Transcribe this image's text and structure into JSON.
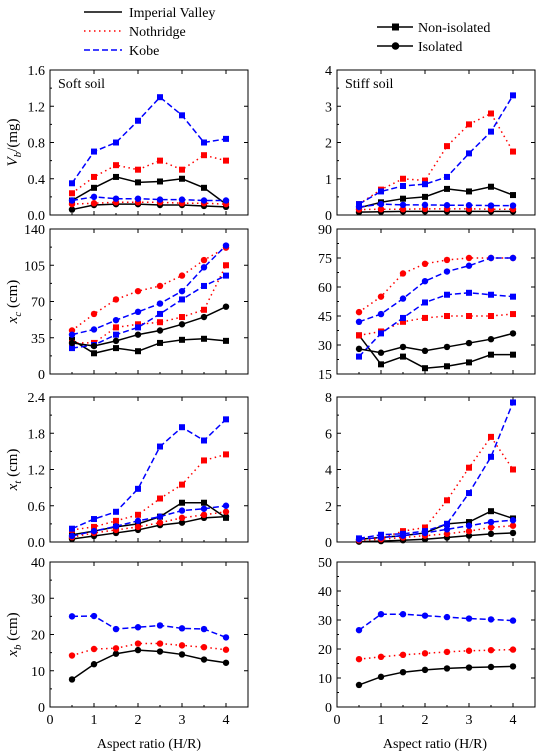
{
  "legend_left": [
    {
      "label": "Imperial Valley",
      "color": "#000000",
      "dash": "solid"
    },
    {
      "label": "Nothridge",
      "color": "#ff0000",
      "dash": "dotted"
    },
    {
      "label": "Kobe",
      "color": "#0000ff",
      "dash": "dashed"
    }
  ],
  "legend_right": [
    {
      "label": "Non-isolated",
      "marker": "square"
    },
    {
      "label": "Isolated",
      "marker": "circle"
    }
  ],
  "x_axis": {
    "label": "Aspect ratio (H/R)",
    "range": [
      0,
      4.5
    ],
    "ticks": [
      0,
      1,
      2,
      3,
      4
    ]
  },
  "colors": {
    "Imperial Valley": "#000000",
    "Nothridge": "#ff0000",
    "Kobe": "#0000ff"
  },
  "chart_data": [
    {
      "type": "line",
      "panel": "Vb-soft",
      "title": "Soft soil",
      "ylabel": "Vb/(mg)",
      "x": [
        0.5,
        1,
        1.5,
        2,
        2.5,
        3,
        3.5,
        4
      ],
      "ylim": [
        0,
        1.6
      ],
      "yticks": [
        "0.0",
        "0.4",
        "0.8",
        "1.2",
        "1.6"
      ],
      "series": [
        {
          "name": "Imperial Valley",
          "marker": "square",
          "values": [
            0.16,
            0.3,
            0.42,
            0.36,
            0.37,
            0.4,
            0.3,
            0.12
          ]
        },
        {
          "name": "Nothridge",
          "marker": "square",
          "values": [
            0.24,
            0.42,
            0.55,
            0.5,
            0.6,
            0.5,
            0.66,
            0.6
          ]
        },
        {
          "name": "Kobe",
          "marker": "square",
          "values": [
            0.35,
            0.7,
            0.8,
            1.04,
            1.3,
            1.1,
            0.8,
            0.84
          ]
        },
        {
          "name": "Imperial Valley",
          "marker": "circle",
          "values": [
            0.06,
            0.11,
            0.12,
            0.12,
            0.11,
            0.11,
            0.1,
            0.09
          ]
        },
        {
          "name": "Nothridge",
          "marker": "circle",
          "values": [
            0.12,
            0.13,
            0.14,
            0.14,
            0.14,
            0.13,
            0.13,
            0.12
          ]
        },
        {
          "name": "Kobe",
          "marker": "circle",
          "values": [
            0.16,
            0.2,
            0.18,
            0.18,
            0.17,
            0.17,
            0.16,
            0.16
          ]
        }
      ]
    },
    {
      "type": "line",
      "panel": "Vb-stiff",
      "title": "Stiff soil",
      "ylabel": "",
      "x": [
        0.5,
        1,
        1.5,
        2,
        2.5,
        3,
        3.5,
        4
      ],
      "ylim": [
        0,
        4
      ],
      "yticks": [
        "0",
        "1",
        "2",
        "3",
        "4"
      ],
      "series": [
        {
          "name": "Imperial Valley",
          "marker": "square",
          "values": [
            0.2,
            0.35,
            0.45,
            0.5,
            0.72,
            0.65,
            0.78,
            0.55
          ]
        },
        {
          "name": "Nothridge",
          "marker": "square",
          "values": [
            0.3,
            0.7,
            1.0,
            0.95,
            1.9,
            2.5,
            2.8,
            1.75
          ]
        },
        {
          "name": "Kobe",
          "marker": "square",
          "values": [
            0.3,
            0.65,
            0.8,
            0.85,
            1.05,
            1.7,
            2.3,
            3.3
          ]
        },
        {
          "name": "Imperial Valley",
          "marker": "circle",
          "values": [
            0.08,
            0.09,
            0.1,
            0.1,
            0.1,
            0.1,
            0.1,
            0.1
          ]
        },
        {
          "name": "Nothridge",
          "marker": "circle",
          "values": [
            0.15,
            0.16,
            0.16,
            0.17,
            0.17,
            0.17,
            0.16,
            0.16
          ]
        },
        {
          "name": "Kobe",
          "marker": "circle",
          "values": [
            0.22,
            0.3,
            0.28,
            0.28,
            0.27,
            0.27,
            0.26,
            0.26
          ]
        }
      ]
    },
    {
      "type": "line",
      "panel": "xc-soft",
      "title": "",
      "ylabel": "xc (cm)",
      "x": [
        0.5,
        1,
        1.5,
        2,
        2.5,
        3,
        3.5,
        4
      ],
      "ylim": [
        0,
        140
      ],
      "yticks": [
        "0",
        "35",
        "70",
        "105",
        "140"
      ],
      "series": [
        {
          "name": "Imperial Valley",
          "marker": "square",
          "values": [
            33,
            20,
            25,
            22,
            30,
            33,
            34,
            32
          ]
        },
        {
          "name": "Nothridge",
          "marker": "square",
          "values": [
            30,
            30,
            45,
            48,
            50,
            55,
            62,
            105
          ]
        },
        {
          "name": "Kobe",
          "marker": "square",
          "values": [
            25,
            28,
            38,
            45,
            58,
            72,
            85,
            95
          ]
        },
        {
          "name": "Imperial Valley",
          "marker": "circle",
          "values": [
            30,
            27,
            32,
            38,
            42,
            48,
            55,
            65
          ]
        },
        {
          "name": "Nothridge",
          "marker": "circle",
          "values": [
            42,
            58,
            72,
            80,
            85,
            95,
            110,
            122
          ]
        },
        {
          "name": "Kobe",
          "marker": "circle",
          "values": [
            38,
            43,
            52,
            60,
            68,
            80,
            103,
            124
          ]
        }
      ]
    },
    {
      "type": "line",
      "panel": "xc-stiff",
      "title": "",
      "ylabel": "",
      "x": [
        0.5,
        1,
        1.5,
        2,
        2.5,
        3,
        3.5,
        4
      ],
      "ylim": [
        15,
        90
      ],
      "yticks": [
        "15",
        "30",
        "45",
        "60",
        "75",
        "90"
      ],
      "series": [
        {
          "name": "Imperial Valley",
          "marker": "square",
          "values": [
            35,
            20,
            24,
            18,
            19,
            21,
            25,
            25
          ]
        },
        {
          "name": "Nothridge",
          "marker": "square",
          "values": [
            35,
            37,
            42,
            44,
            45,
            45,
            45,
            46
          ]
        },
        {
          "name": "Kobe",
          "marker": "square",
          "values": [
            24,
            36,
            44,
            52,
            56,
            57,
            56,
            55
          ]
        },
        {
          "name": "Imperial Valley",
          "marker": "circle",
          "values": [
            28,
            26,
            29,
            27,
            29,
            31,
            33,
            36
          ]
        },
        {
          "name": "Nothridge",
          "marker": "circle",
          "values": [
            47,
            55,
            67,
            72,
            74,
            75,
            75,
            75
          ]
        },
        {
          "name": "Kobe",
          "marker": "circle",
          "values": [
            42,
            46,
            54,
            63,
            68,
            71,
            75,
            75
          ]
        }
      ]
    },
    {
      "type": "line",
      "panel": "xt-soft",
      "title": "",
      "ylabel": "xt (cm)",
      "x": [
        0.5,
        1,
        1.5,
        2,
        2.5,
        3,
        3.5,
        4
      ],
      "ylim": [
        0,
        2.4
      ],
      "yticks": [
        "0.0",
        "0.6",
        "1.2",
        "1.8",
        "2.4"
      ],
      "series": [
        {
          "name": "Imperial Valley",
          "marker": "square",
          "values": [
            0.12,
            0.18,
            0.25,
            0.3,
            0.42,
            0.65,
            0.65,
            0.4
          ]
        },
        {
          "name": "Nothridge",
          "marker": "square",
          "values": [
            0.2,
            0.25,
            0.35,
            0.45,
            0.72,
            0.95,
            1.35,
            1.45
          ]
        },
        {
          "name": "Kobe",
          "marker": "square",
          "values": [
            0.22,
            0.38,
            0.5,
            0.88,
            1.58,
            1.9,
            1.68,
            2.03
          ]
        },
        {
          "name": "Imperial Valley",
          "marker": "circle",
          "values": [
            0.05,
            0.1,
            0.15,
            0.2,
            0.28,
            0.32,
            0.4,
            0.42
          ]
        },
        {
          "name": "Nothridge",
          "marker": "circle",
          "values": [
            0.08,
            0.15,
            0.2,
            0.25,
            0.32,
            0.4,
            0.45,
            0.5
          ]
        },
        {
          "name": "Kobe",
          "marker": "circle",
          "values": [
            0.1,
            0.18,
            0.26,
            0.35,
            0.42,
            0.52,
            0.55,
            0.6
          ]
        }
      ]
    },
    {
      "type": "line",
      "panel": "xt-stiff",
      "title": "",
      "ylabel": "",
      "x": [
        0.5,
        1,
        1.5,
        2,
        2.5,
        3,
        3.5,
        4
      ],
      "ylim": [
        0,
        8
      ],
      "yticks": [
        "0",
        "2",
        "4",
        "6",
        "8"
      ],
      "series": [
        {
          "name": "Imperial Valley",
          "marker": "square",
          "values": [
            0.15,
            0.25,
            0.35,
            0.5,
            1.0,
            1.1,
            1.7,
            1.3
          ]
        },
        {
          "name": "Nothridge",
          "marker": "square",
          "values": [
            0.1,
            0.2,
            0.6,
            0.8,
            2.3,
            4.1,
            5.8,
            4.0
          ]
        },
        {
          "name": "Kobe",
          "marker": "square",
          "values": [
            0.2,
            0.4,
            0.45,
            0.6,
            1.0,
            2.7,
            4.7,
            7.7
          ]
        },
        {
          "name": "Imperial Valley",
          "marker": "circle",
          "values": [
            0.02,
            0.05,
            0.1,
            0.15,
            0.25,
            0.35,
            0.45,
            0.5
          ]
        },
        {
          "name": "Nothridge",
          "marker": "circle",
          "values": [
            0.1,
            0.15,
            0.25,
            0.35,
            0.45,
            0.6,
            0.8,
            0.9
          ]
        },
        {
          "name": "Kobe",
          "marker": "circle",
          "values": [
            0.15,
            0.25,
            0.35,
            0.5,
            0.7,
            0.9,
            1.1,
            1.2
          ]
        }
      ]
    },
    {
      "type": "line",
      "panel": "xb-soft",
      "title": "",
      "ylabel": "xb (cm)",
      "x": [
        0.5,
        1,
        1.5,
        2,
        2.5,
        3,
        3.5,
        4
      ],
      "ylim": [
        0,
        40
      ],
      "yticks": [
        "0",
        "10",
        "20",
        "30",
        "40"
      ],
      "series": [
        {
          "name": "Imperial Valley",
          "marker": "circle",
          "values": [
            7.6,
            11.8,
            14.7,
            15.7,
            15.3,
            14.5,
            13.1,
            12.2
          ]
        },
        {
          "name": "Nothridge",
          "marker": "circle",
          "values": [
            14.2,
            16.0,
            16.2,
            17.5,
            17.5,
            17.0,
            16.5,
            15.8
          ]
        },
        {
          "name": "Kobe",
          "marker": "circle",
          "values": [
            25.0,
            25.1,
            21.5,
            22.0,
            22.5,
            21.7,
            21.5,
            19.2
          ]
        }
      ]
    },
    {
      "type": "line",
      "panel": "xb-stiff",
      "title": "",
      "ylabel": "",
      "x": [
        0.5,
        1,
        1.5,
        2,
        2.5,
        3,
        3.5,
        4
      ],
      "ylim": [
        0,
        50
      ],
      "yticks": [
        "0",
        "10",
        "20",
        "30",
        "40",
        "50"
      ],
      "series": [
        {
          "name": "Imperial Valley",
          "marker": "circle",
          "values": [
            7.6,
            10.4,
            12.0,
            12.8,
            13.3,
            13.6,
            13.8,
            14.0
          ]
        },
        {
          "name": "Nothridge",
          "marker": "circle",
          "values": [
            16.5,
            17.3,
            18.0,
            18.5,
            19.0,
            19.4,
            19.6,
            19.8
          ]
        },
        {
          "name": "Kobe",
          "marker": "circle",
          "values": [
            26.5,
            32.0,
            32.0,
            31.5,
            31.0,
            30.5,
            30.2,
            29.8
          ]
        }
      ]
    }
  ]
}
